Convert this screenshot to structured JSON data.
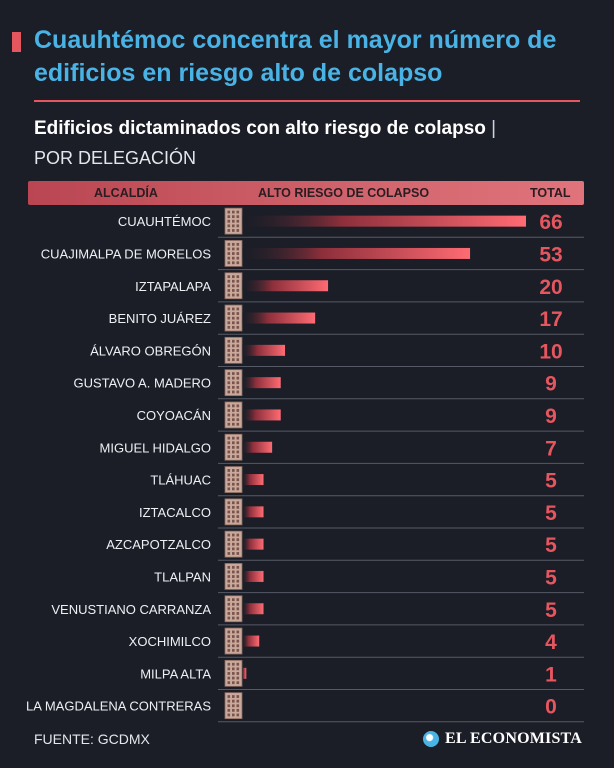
{
  "header": {
    "headline": "Cuauhtémoc concentra el mayor número de edificios en riesgo alto de colapso",
    "subtitle": "Edificios dictaminados con alto riesgo de colapso",
    "subtitle_sep": "|",
    "subtitle2": "POR DELEGACIÓN"
  },
  "table_header": {
    "col_alcaldia": "ALCALDÍA",
    "col_alto": "ALTO RIESGO DE COLAPSO",
    "col_total": "TOTAL"
  },
  "colors": {
    "accent": "#e5565f",
    "headline": "#4ab3e6",
    "background": "#1b1e27",
    "bar": "#e5565f",
    "total": "#e5565f"
  },
  "icon": "building-icon",
  "chart_data": {
    "type": "bar",
    "orientation": "horizontal",
    "categories": [
      "CUAUHTÉMOC",
      "CUAJIMALPA DE MORELOS",
      "IZTAPALAPA",
      "BENITO JUÁREZ",
      "ÁLVARO OBREGÓN",
      "GUSTAVO A. MADERO",
      "COYOACÁN",
      "MIGUEL HIDALGO",
      "TLÁHUAC",
      "IZTACALCO",
      "AZCAPOTZALCO",
      "TLALPAN",
      "VENUSTIANO CARRANZA",
      "XOCHIMILCO",
      "MILPA ALTA",
      "LA MAGDALENA CONTRERAS"
    ],
    "values": [
      66,
      53,
      20,
      17,
      10,
      9,
      9,
      7,
      5,
      5,
      5,
      5,
      5,
      4,
      1,
      0
    ],
    "xlim": [
      0,
      66
    ]
  },
  "footer": {
    "source": "FUENTE: GCDMX",
    "brand": "EL ECONOMISTA"
  }
}
